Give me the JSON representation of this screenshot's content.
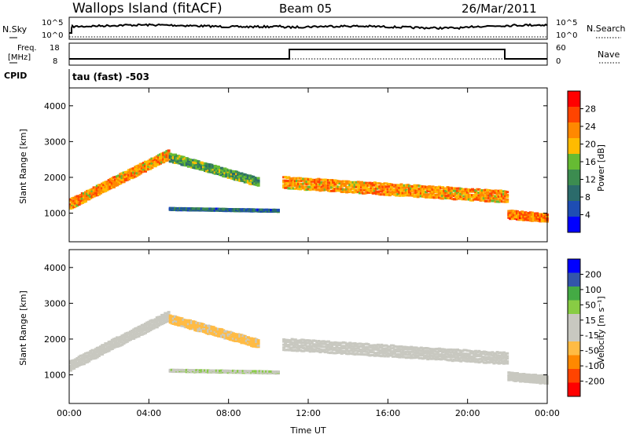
{
  "header": {
    "station": "Wallops Island (fitACF)",
    "beam": "Beam 05",
    "date": "26/Mar/2011"
  },
  "status_panels": {
    "noise": {
      "left_label": "N.Sky",
      "right_label": "N.Search",
      "left_ticks": [
        "10^5",
        "10^0"
      ],
      "right_ticks": [
        "10^5",
        "10^0"
      ]
    },
    "freq": {
      "left_label_1": "Freq.",
      "left_label_2": "[MHz]",
      "right_label": "Nave",
      "left_ticks": [
        "18",
        "8"
      ],
      "right_ticks": [
        "60",
        "0"
      ]
    },
    "cpid": {
      "label": "CPID",
      "value": "tau (fast) -503"
    }
  },
  "colors": {
    "power": [
      "#0000ff",
      "#1e4db3",
      "#2b6b6b",
      "#3c8c50",
      "#66bb33",
      "#ffbb00",
      "#ff8800",
      "#ff4400",
      "#ff0000"
    ],
    "velocity": [
      "#ff0000",
      "#ff4400",
      "#ff8800",
      "#ffbb44",
      "#c8c8c0",
      "#c8c8c0",
      "#88cc44",
      "#44aa44",
      "#3355aa",
      "#0000ff"
    ]
  },
  "chart_data": [
    {
      "type": "heatmap",
      "name": "power",
      "xlabel": "",
      "ylabel": "Slant Range [km]",
      "xlim": [
        0,
        24
      ],
      "ylim": [
        200,
        4500
      ],
      "yticks": [
        "1000",
        "2000",
        "3000",
        "4000"
      ],
      "colorbar_label": "Power [dB]",
      "colorbar_ticks": [
        "4",
        "8",
        "12",
        "16",
        "20",
        "24",
        "28"
      ],
      "clim": [
        0,
        32
      ],
      "bands": [
        {
          "t": [
            0.0,
            5.0
          ],
          "center": [
            1300,
            2700
          ],
          "width": 300,
          "value": 22
        },
        {
          "t": [
            5.0,
            9.5
          ],
          "center": [
            2600,
            1900
          ],
          "width": 250,
          "value": 14
        },
        {
          "t": [
            5.0,
            10.5
          ],
          "center": [
            1150,
            1100
          ],
          "width": 60,
          "value": 8
        },
        {
          "t": [
            10.7,
            22.0
          ],
          "center": [
            1900,
            1500
          ],
          "width": 350,
          "value": 22
        },
        {
          "t": [
            22.0,
            24.0
          ],
          "center": [
            1000,
            900
          ],
          "width": 250,
          "value": 24
        }
      ]
    },
    {
      "type": "heatmap",
      "name": "velocity",
      "xlabel": "Time UT",
      "ylabel": "Slant Range [km]",
      "xlim": [
        0,
        24
      ],
      "ylim": [
        200,
        4500
      ],
      "xticks": [
        "00:00",
        "04:00",
        "08:00",
        "12:00",
        "16:00",
        "20:00",
        "00:00"
      ],
      "yticks": [
        "1000",
        "2000",
        "3000",
        "4000"
      ],
      "colorbar_label": "Velocity [m s⁻¹]",
      "colorbar_ticks": [
        "200",
        "100",
        "50",
        "15",
        "-15",
        "-50",
        "-100",
        "-200"
      ],
      "clim": [
        -250,
        250
      ],
      "bands": [
        {
          "t": [
            0.0,
            5.0
          ],
          "center": [
            1300,
            2700
          ],
          "width": 300,
          "value": 0
        },
        {
          "t": [
            5.0,
            9.5
          ],
          "center": [
            2600,
            1900
          ],
          "width": 250,
          "value": -60
        },
        {
          "t": [
            5.0,
            10.5
          ],
          "center": [
            1150,
            1100
          ],
          "width": 60,
          "value": 40
        },
        {
          "t": [
            10.7,
            22.0
          ],
          "center": [
            1900,
            1500
          ],
          "width": 350,
          "value": 0
        },
        {
          "t": [
            22.0,
            24.0
          ],
          "center": [
            1000,
            900
          ],
          "width": 250,
          "value": 0
        }
      ]
    }
  ]
}
